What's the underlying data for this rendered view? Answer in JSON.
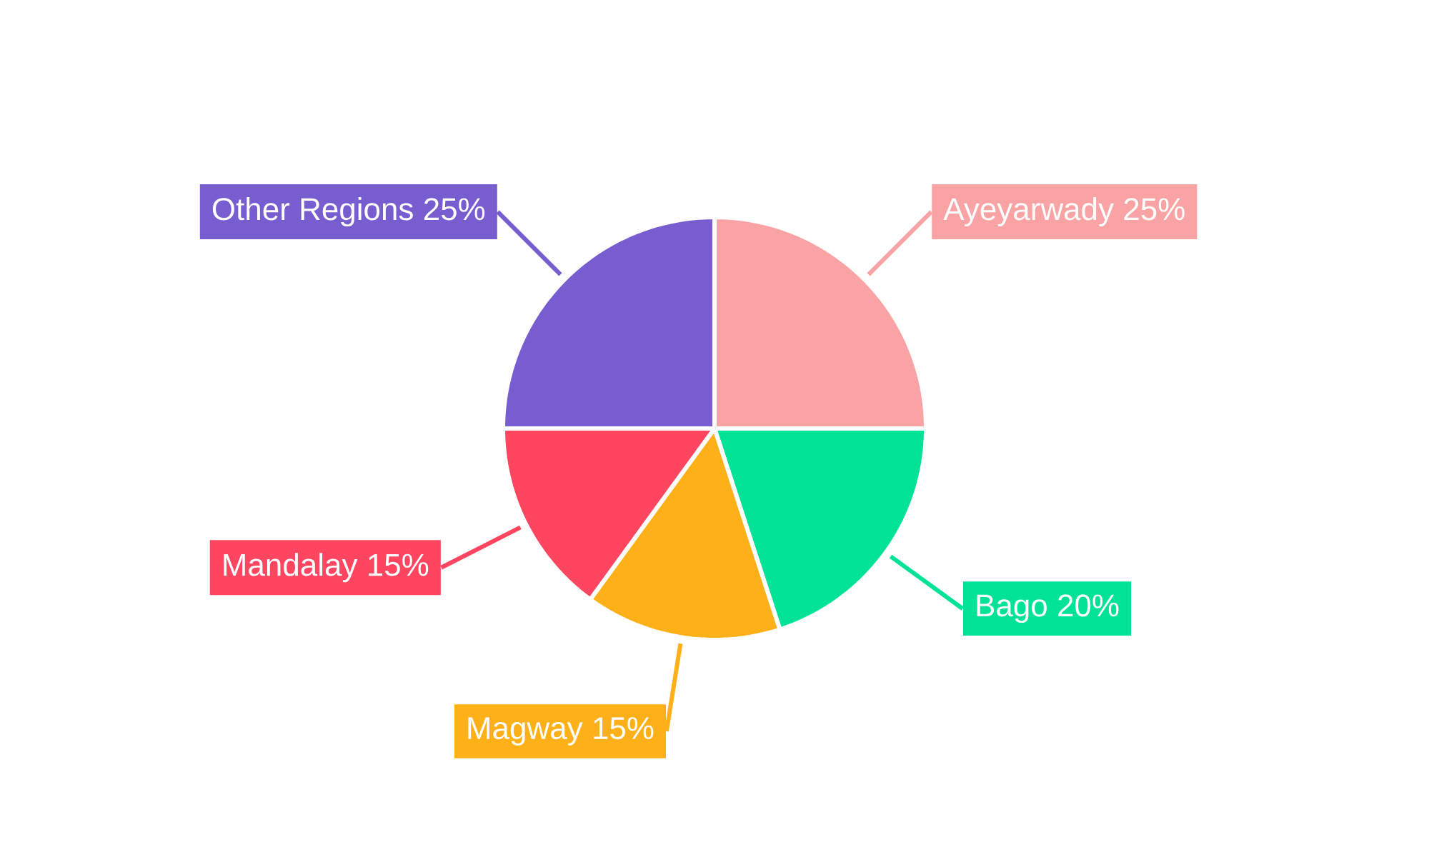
{
  "chart_data": {
    "type": "pie",
    "categories": [
      "Ayeyarwady",
      "Bago",
      "Magway",
      "Mandalay",
      "Other Regions"
    ],
    "values": [
      25,
      20,
      15,
      15,
      25
    ],
    "value_labels": [
      "25%",
      "20%",
      "15%",
      "15%",
      "25%"
    ],
    "colors": [
      "#f9a3a4",
      "#00e396",
      "#feb019",
      "#ff4560",
      "#775dd0"
    ]
  }
}
